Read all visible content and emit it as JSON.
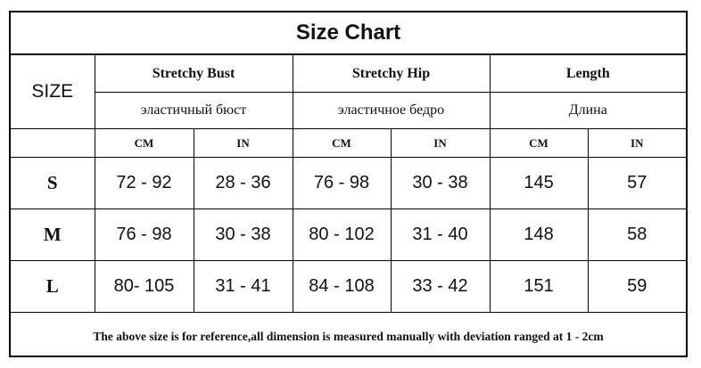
{
  "title": "Size Chart",
  "size_header": "SIZE",
  "groups": [
    {
      "name": "Stretchy Bust",
      "sub": "эластичный бюст"
    },
    {
      "name": "Stretchy Hip",
      "sub": "эластичное бедро"
    },
    {
      "name": "Length",
      "sub": "Длина"
    }
  ],
  "units": [
    "CM",
    "IN",
    "CM",
    "IN",
    "CM",
    "IN"
  ],
  "rows": [
    {
      "size": "S",
      "values": [
        "72 - 92",
        "28 - 36",
        "76 - 98",
        "30 - 38",
        "145",
        "57"
      ]
    },
    {
      "size": "M",
      "values": [
        "76 - 98",
        "30 - 38",
        "80 - 102",
        "31 - 40",
        "148",
        "58"
      ]
    },
    {
      "size": "L",
      "values": [
        "80- 105",
        "31 - 41",
        "84 - 108",
        "33 - 42",
        "151",
        "59"
      ]
    }
  ],
  "note": "The above size is for reference,all dimension is measured manually with deviation ranged at 1 - 2cm"
}
